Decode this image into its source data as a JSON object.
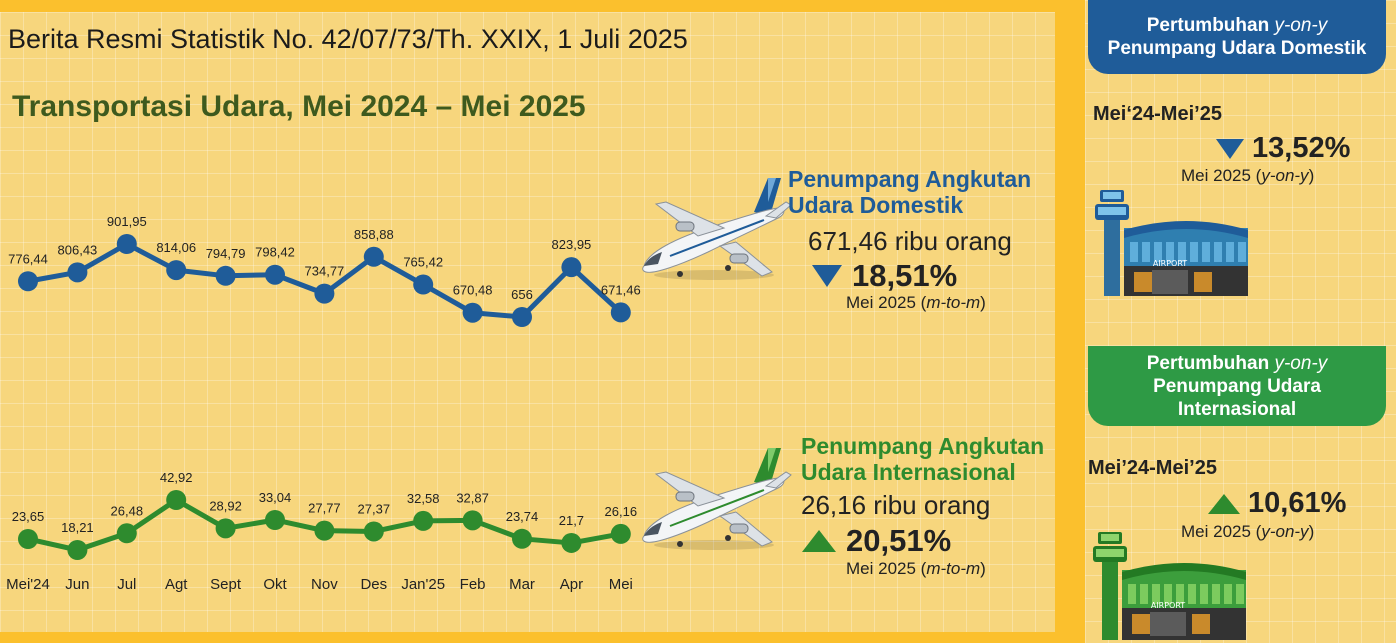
{
  "header": "Berita Resmi Statistik No. 42/07/73/Th. XXIX, 1 Juli 2025",
  "title": "Transportasi Udara, Mei 2024 – Mei 2025",
  "colors": {
    "domestic": "#1F5C99",
    "international": "#2E8B2E",
    "background": "#F7D67D",
    "border": "#FBC02D"
  },
  "chart_data": {
    "type": "line",
    "categories": [
      "Mei'24",
      "Jun",
      "Jul",
      "Agt",
      "Sept",
      "Okt",
      "Nov",
      "Des",
      "Jan'25",
      "Feb",
      "Mar",
      "Apr",
      "Mei"
    ],
    "series": [
      {
        "name": "Penumpang Angkutan Udara Domestik",
        "values": [
          776.44,
          806.43,
          901.95,
          814.06,
          794.79,
          798.42,
          734.77,
          858.88,
          765.42,
          670.48,
          656,
          823.95,
          671.46
        ],
        "labels": [
          "776,44",
          "806,43",
          "901,95",
          "814,06",
          "794,79",
          "798,42",
          "734,77",
          "858,88",
          "765,42",
          "670,48",
          "656",
          "823,95",
          "671,46"
        ]
      },
      {
        "name": "Penumpang Angkutan Udara Internasional",
        "values": [
          23.65,
          18.21,
          26.48,
          42.92,
          28.92,
          33.04,
          27.77,
          27.37,
          32.58,
          32.87,
          23.74,
          21.7,
          26.16
        ],
        "labels": [
          "23,65",
          "18,21",
          "26,48",
          "42,92",
          "28,92",
          "33,04",
          "27,77",
          "27,37",
          "32,58",
          "32,87",
          "23,74",
          "21,7",
          "26,16"
        ]
      }
    ]
  },
  "domestic": {
    "title_line1": "Penumpang Angkutan",
    "title_line2": "Udara Domestik",
    "count": "671,46 ribu orang",
    "change": "18,51%",
    "direction": "down",
    "note_prefix": "Mei 2025 (",
    "note_italic": "m-to-m",
    "note_suffix": ")"
  },
  "international": {
    "title_line1": "Penumpang Angkutan",
    "title_line2": "Udara Internasional",
    "count": "26,16 ribu orang",
    "change": "20,51%",
    "direction": "up",
    "note_prefix": "Mei 2025 (",
    "note_italic": "m-to-m",
    "note_suffix": ")"
  },
  "yoy_domestic": {
    "heading_prefix": "Pertumbuhan ",
    "heading_italic": "y-on-y",
    "heading_line2": "Penumpang Udara Domestik",
    "period": "Mei‘24-Mei’25",
    "change": "13,52%",
    "direction": "down",
    "note_prefix": "Mei 2025 (",
    "note_italic": "y-on-y",
    "note_suffix": ")"
  },
  "yoy_international": {
    "heading_prefix": "Pertumbuhan ",
    "heading_italic": "y-on-y",
    "heading_line2": "Penumpang Udara",
    "heading_line3": "Internasional",
    "period": "Mei’24-Mei’25",
    "change": "10,61%",
    "direction": "up",
    "note_prefix": "Mei 2025 (",
    "note_italic": "y-on-y",
    "note_suffix": ")"
  },
  "airport_sign": "AIRPORT",
  "icons": [
    "airplane-icon",
    "airport-tower-icon"
  ]
}
